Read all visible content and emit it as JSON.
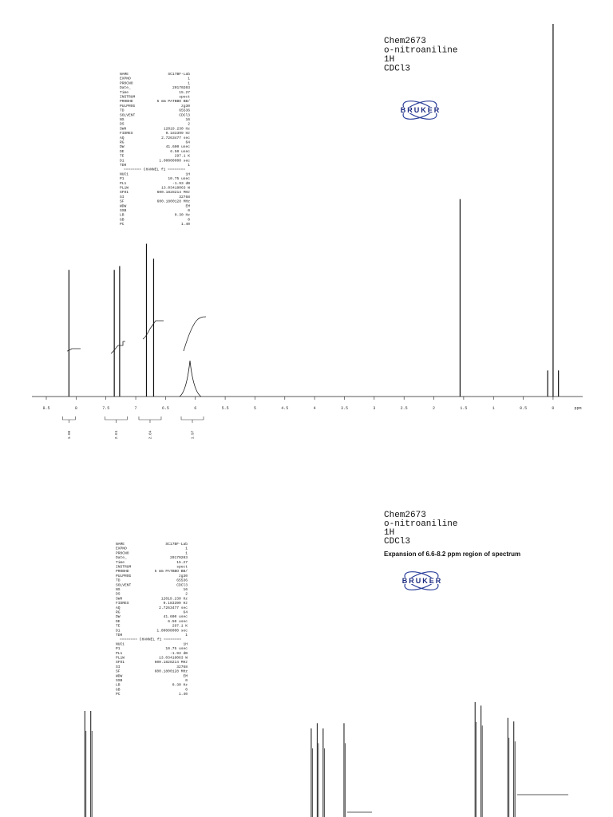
{
  "chart_data": [
    {
      "type": "spectrum",
      "header": [
        "Chem2673",
        "o-nitroaniline",
        "1H",
        "CDCl3"
      ],
      "logo": "BRUKER",
      "params": [
        [
          "NAME",
          "SC17BF-Lab"
        ],
        [
          "EXPNO",
          "1"
        ],
        [
          "PROCNO",
          "1"
        ],
        [
          "Date_",
          "20170203"
        ],
        [
          "Time",
          "15.27"
        ],
        [
          "INSTRUM",
          "spect"
        ],
        [
          "PROBHD",
          "5 mm PATBBO BB/"
        ],
        [
          "PULPROG",
          "zg30"
        ],
        [
          "TD",
          "65536"
        ],
        [
          "SOLVENT",
          "CDCl3"
        ],
        [
          "NS",
          "16"
        ],
        [
          "DS",
          "2"
        ],
        [
          "SWH",
          "12019.230 Hz"
        ],
        [
          "FIDRES",
          "0.183399 Hz"
        ],
        [
          "AQ",
          "2.7263477 sec"
        ],
        [
          "RG",
          "64"
        ],
        [
          "DW",
          "41.600 usec"
        ],
        [
          "DE",
          "6.50 usec"
        ],
        [
          "TE",
          "297.1 K"
        ],
        [
          "D1",
          "1.00000000 sec"
        ],
        [
          "TD0",
          "1"
        ],
        [
          "======== CHANNEL f1 ========",
          ""
        ],
        [
          "NUC1",
          "1H"
        ],
        [
          "P1",
          "10.75 usec"
        ],
        [
          "PL1",
          "-1.93 dB"
        ],
        [
          "PL1W",
          "13.03418063 W"
        ],
        [
          "SFO1",
          "600.1828214 MHz"
        ],
        [
          "SI",
          "32768"
        ],
        [
          "SF",
          "600.1800128 MHz"
        ],
        [
          "WDW",
          "EM"
        ],
        [
          "SSB",
          "0"
        ],
        [
          "LB",
          "0.30 Hz"
        ],
        [
          "GB",
          "0"
        ],
        [
          "PC",
          "1.40"
        ]
      ],
      "xlim": [
        8.5,
        -0.3
      ],
      "ylim": [
        0,
        100
      ],
      "xticks": [
        8.5,
        8.0,
        7.5,
        7.0,
        6.5,
        6.0,
        5.5,
        5.0,
        4.5,
        4.0,
        3.5,
        3.0,
        2.5,
        2.0,
        1.5,
        1.0,
        0.5,
        0.0
      ],
      "x_unit": "ppm",
      "peaks": {
        "ppm": [
          8.12,
          7.36,
          7.27,
          6.82,
          6.7,
          6.05,
          1.56,
          0.09,
          0.0,
          -0.09
        ],
        "intensity": [
          34,
          34,
          35,
          41,
          37,
          10,
          53,
          7,
          100,
          7
        ]
      },
      "integrals": {
        "ppm": [
          8.12,
          7.33,
          6.76,
          6.05
        ],
        "values": [
          "1.00",
          "2.01",
          "2.04",
          "1.97"
        ]
      }
    },
    {
      "type": "spectrum",
      "header": [
        "Chem2673",
        "o-nitroaniline",
        "1H",
        "CDCl3"
      ],
      "subtitle": "Expansion of 6.6-8.2 ppm region of spectrum",
      "logo": "BRUKER",
      "params": [
        [
          "NAME",
          "SC17BF-Lab"
        ],
        [
          "EXPNO",
          "1"
        ],
        [
          "PROCNO",
          "1"
        ],
        [
          "Date_",
          "20170203"
        ],
        [
          "Time",
          "15.27"
        ],
        [
          "INSTRUM",
          "spect"
        ],
        [
          "PROBHD",
          "5 mm PATBBO BB/"
        ],
        [
          "PULPROG",
          "zg30"
        ],
        [
          "TD",
          "65536"
        ],
        [
          "SOLVENT",
          "CDCl3"
        ],
        [
          "NS",
          "16"
        ],
        [
          "DS",
          "2"
        ],
        [
          "SWH",
          "12019.230 Hz"
        ],
        [
          "FIDRES",
          "0.183399 Hz"
        ],
        [
          "AQ",
          "2.7263477 sec"
        ],
        [
          "RG",
          "64"
        ],
        [
          "DW",
          "41.600 usec"
        ],
        [
          "DE",
          "6.50 usec"
        ],
        [
          "TE",
          "297.1 K"
        ],
        [
          "D1",
          "1.00000000 sec"
        ],
        [
          "TD0",
          "1"
        ],
        [
          "======== CHANNEL f1 ========",
          ""
        ],
        [
          "NUC1",
          "1H"
        ],
        [
          "P1",
          "10.75 usec"
        ],
        [
          "PL1",
          "-1.93 dB"
        ],
        [
          "PL1W",
          "13.03418063 W"
        ],
        [
          "SFO1",
          "600.1828214 MHz"
        ],
        [
          "SI",
          "32768"
        ],
        [
          "SF",
          "600.1800128 MHz"
        ],
        [
          "WDW",
          "EM"
        ],
        [
          "SSB",
          "0"
        ],
        [
          "LB",
          "0.30 Hz"
        ],
        [
          "GB",
          "0"
        ],
        [
          "PC",
          "1.40"
        ]
      ],
      "xlim": [
        8.12,
        6.7
      ],
      "ylim": [
        0,
        100
      ],
      "peaks": {
        "ppm": [
          8.13,
          8.11,
          7.37,
          7.35,
          7.33,
          7.26,
          6.82,
          6.8,
          6.71,
          6.69
        ],
        "intensity": [
          95,
          95,
          85,
          88,
          85,
          88,
          100,
          98,
          91,
          89
        ]
      }
    }
  ]
}
